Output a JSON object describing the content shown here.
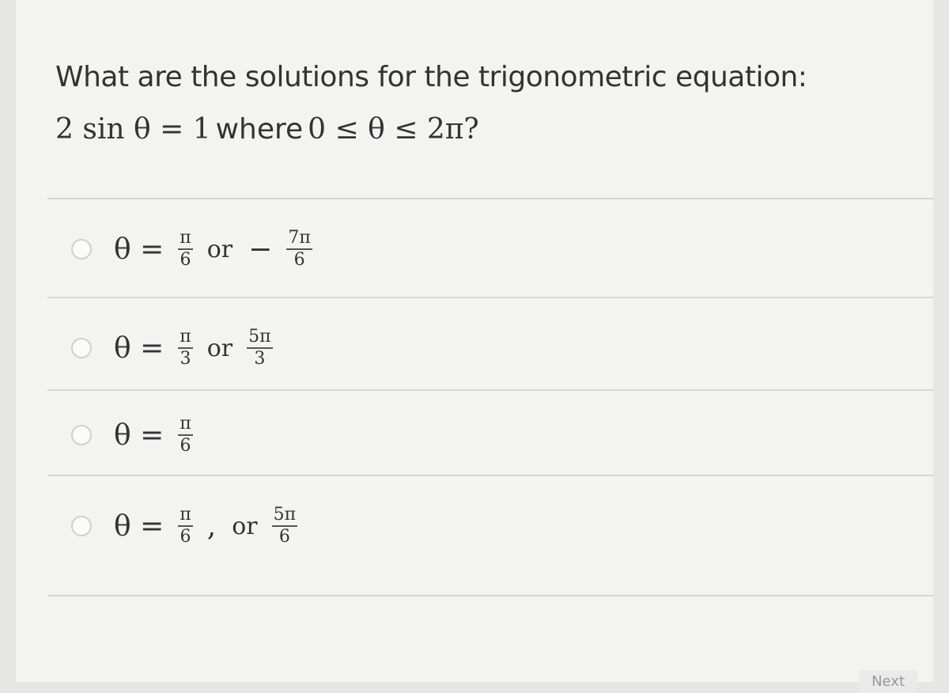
{
  "question": {
    "line1": "What are the solutions for the trigonometric equation:",
    "line2": [
      {
        "text": "2 sin θ = 1",
        "math": true
      },
      {
        "text": "where",
        "math": false
      },
      {
        "text": "0 ≤ θ ≤ 2π?",
        "math": true
      }
    ]
  },
  "options": [
    {
      "parts": [
        {
          "text": "θ ="
        },
        {
          "num": "π",
          "den": "6"
        },
        {
          "text": "or"
        },
        {
          "text": "−"
        },
        {
          "num": "7π",
          "den": "6"
        }
      ]
    },
    {
      "parts": [
        {
          "text": "θ ="
        },
        {
          "num": "π",
          "den": "3"
        },
        {
          "text": "or"
        },
        {
          "num": "5π",
          "den": "3"
        }
      ]
    },
    {
      "parts": [
        {
          "text": "θ ="
        },
        {
          "num": "π",
          "den": "6"
        }
      ]
    },
    {
      "parts": [
        {
          "text": "θ ="
        },
        {
          "num": "π",
          "den": "6"
        },
        {
          "text": ","
        },
        {
          "text": "or"
        },
        {
          "num": "5π",
          "den": "6"
        }
      ]
    }
  ],
  "button": "Next"
}
